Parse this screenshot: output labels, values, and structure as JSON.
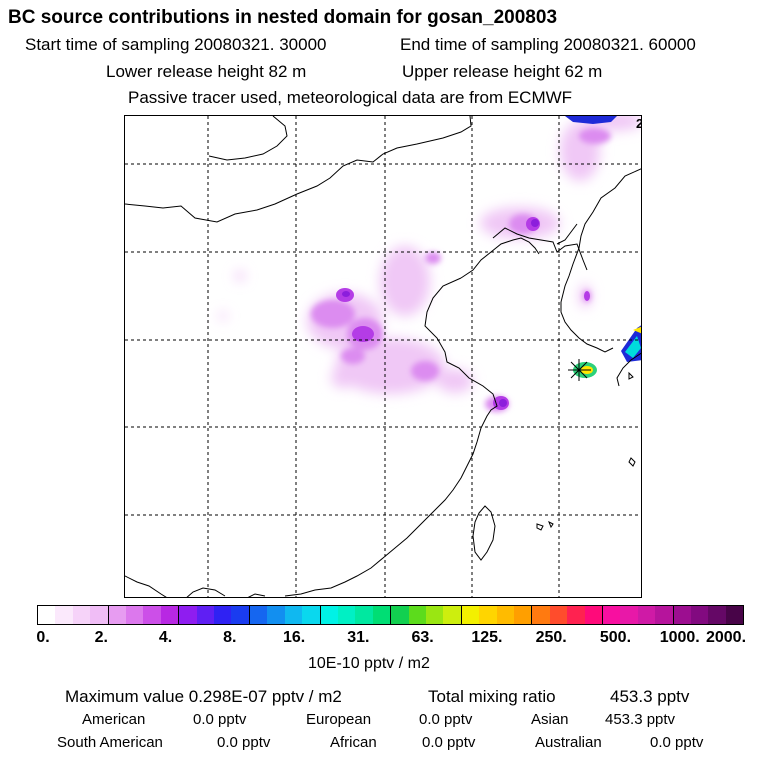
{
  "header": {
    "title": "BC  source contributions in nested domain for gosan_200803",
    "start_label": "Start time of sampling 20080321. 30000",
    "end_label": "End time of sampling 20080321. 60000",
    "lower_label": "Lower release height   82 m",
    "upper_label": "Upper release height   62 m",
    "tracer_note": "Passive tracer used, meteorological data are from ECMWF"
  },
  "map": {
    "corner_label": "2",
    "receptor_marker": "gosan-receptor-star",
    "plume_colors": {
      "light": "#f0c8f6",
      "mid": "#dc8cf0",
      "strong": "#b43ce6",
      "core": "#8c1edc",
      "peak_blue": "#1e2ad8",
      "peak_cyan": "#00dcdc",
      "peak_green": "#2cd17a",
      "peak_yellow": "#ffe600"
    }
  },
  "colorbar": {
    "labels": [
      "0.",
      "2.",
      "4.",
      "8.",
      "16.",
      "31.",
      "63.",
      "125.",
      "250.",
      "500.",
      "1000.",
      "2000."
    ],
    "colors": [
      "#ffffff",
      "#fbe9fc",
      "#f6d3f9",
      "#f0bdf6",
      "#e79cf1",
      "#dc78ed",
      "#cc4fe8",
      "#b828e3",
      "#8f1df0",
      "#5f1ff3",
      "#2f22f3",
      "#1a3cf0",
      "#1566f0",
      "#128ff0",
      "#10b8f0",
      "#0ad8ee",
      "#00f2e6",
      "#00f0c4",
      "#00e8a0",
      "#00de74",
      "#12d050",
      "#5cdc1c",
      "#9ae612",
      "#cdee0e",
      "#f3f000",
      "#ffd500",
      "#ffbb00",
      "#ff9f00",
      "#ff7a10",
      "#ff4c2c",
      "#ff2250",
      "#ff0a7a",
      "#f80fa0",
      "#e818a8",
      "#cf1aa6",
      "#b6149c",
      "#9c0e90",
      "#820a80",
      "#650866",
      "#480448"
    ],
    "units": "10E-10 pptv / m2"
  },
  "stats": {
    "max_label": "Maximum value  0.298E-07 pptv / m2",
    "total_label": "Total mixing ratio",
    "total_value": "453.3 pptv",
    "american_label": "American",
    "american_value": "0.0 pptv",
    "european_label": "European",
    "european_value": "0.0 pptv",
    "asian_label": "Asian",
    "asian_value": "453.3 pptv",
    "south_american_label": "South American",
    "south_american_value": "0.0 pptv",
    "african_label": "African",
    "african_value": "0.0 pptv",
    "australian_label": "Australian",
    "australian_value": "0.0 pptv"
  }
}
